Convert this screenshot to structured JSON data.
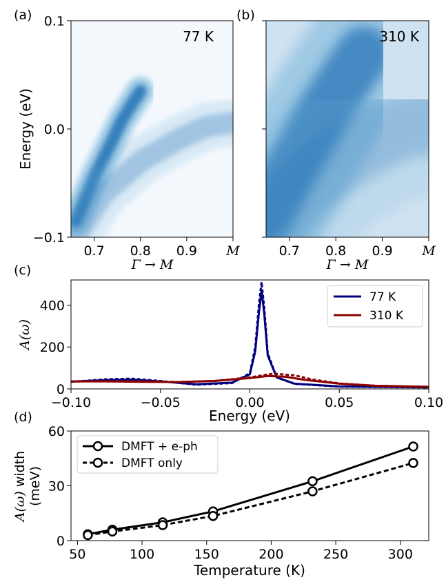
{
  "chart_data": [
    {
      "panel_label": "(a)",
      "type": "heatmap",
      "annotation": "77 K",
      "xlabel": "Γ → M",
      "ylabel": "Energy (eV)",
      "xlim": [
        0.65,
        1.0
      ],
      "ylim": [
        -0.1,
        0.1
      ],
      "x_ticks": [
        "0.7",
        "0.8",
        "0.9",
        "M"
      ],
      "x_tick_values": [
        0.7,
        0.8,
        0.9,
        1.0
      ],
      "y_ticks": [
        "−0.1",
        "0.0",
        "0.1"
      ],
      "y_tick_values": [
        -0.1,
        0.0,
        0.1
      ],
      "colormap": "Blues",
      "bands": [
        {
          "k": [
            0.66,
            0.7,
            0.74,
            0.76,
            0.78,
            0.8
          ],
          "energy": [
            -0.085,
            -0.045,
            -0.01,
            0.008,
            0.022,
            0.035
          ],
          "intensity": 1.0,
          "width": 0.006
        },
        {
          "k": [
            0.66,
            0.72,
            0.8,
            0.88,
            0.94,
            1.0
          ],
          "energy": [
            -0.1,
            -0.06,
            -0.03,
            -0.01,
            0.002,
            0.006
          ],
          "intensity": 0.35,
          "width": 0.01
        }
      ]
    },
    {
      "panel_label": "(b)",
      "type": "heatmap",
      "annotation": "310 K",
      "xlabel": "Γ → M",
      "xlim": [
        0.65,
        1.0
      ],
      "ylim": [
        -0.1,
        0.1
      ],
      "x_ticks": [
        "0.7",
        "0.8",
        "0.9",
        "M"
      ],
      "x_tick_values": [
        0.7,
        0.8,
        0.9,
        1.0
      ],
      "colormap": "Blues",
      "bands": [
        {
          "k": [
            0.65,
            0.7,
            0.74,
            0.78,
            0.82,
            0.86
          ],
          "energy": [
            -0.08,
            -0.04,
            -0.01,
            0.02,
            0.045,
            0.07
          ],
          "intensity": 0.85,
          "width": 0.025
        },
        {
          "k": [
            0.65,
            0.72,
            0.8,
            0.88,
            0.94,
            1.0
          ],
          "energy": [
            -0.1,
            -0.06,
            -0.03,
            -0.01,
            0.002,
            0.006
          ],
          "intensity": 0.3,
          "width": 0.03
        }
      ]
    },
    {
      "panel_label": "(c)",
      "type": "line",
      "xlabel": "Energy (eV)",
      "ylabel": "A(ω)",
      "xlim": [
        -0.1,
        0.1
      ],
      "ylim": [
        0,
        520
      ],
      "x_ticks": [
        "−0.10",
        "−0.05",
        "0.00",
        "0.05",
        "0.10"
      ],
      "x_tick_values": [
        -0.1,
        -0.05,
        0.0,
        0.05,
        0.1
      ],
      "y_ticks": [
        "0",
        "200",
        "400"
      ],
      "y_tick_values": [
        0,
        200,
        400
      ],
      "legend_position": "top-right",
      "series": [
        {
          "name": "77 K",
          "color": "#00007f",
          "style": "solid",
          "x": [
            -0.1,
            -0.08,
            -0.066,
            -0.05,
            -0.03,
            -0.01,
            0.0,
            0.003,
            0.005,
            0.0065,
            0.008,
            0.01,
            0.015,
            0.025,
            0.05,
            0.1
          ],
          "values": [
            35,
            42,
            44,
            36,
            22,
            30,
            70,
            180,
            360,
            470,
            360,
            160,
            55,
            25,
            12,
            8
          ]
        },
        {
          "name": "77 K",
          "color": "#00007f",
          "style": "dashed",
          "x": [
            -0.1,
            -0.08,
            -0.066,
            -0.05,
            -0.03,
            -0.01,
            0.0,
            0.003,
            0.005,
            0.0065,
            0.008,
            0.01,
            0.015,
            0.025,
            0.05,
            0.1
          ],
          "values": [
            34,
            46,
            49,
            38,
            20,
            28,
            75,
            200,
            400,
            510,
            390,
            170,
            55,
            24,
            11,
            7
          ]
        },
        {
          "name": "310 K",
          "color": "#8b0000",
          "style": "solid",
          "x": [
            -0.1,
            -0.08,
            -0.06,
            -0.04,
            -0.02,
            0.0,
            0.01,
            0.02,
            0.03,
            0.05,
            0.07,
            0.1
          ],
          "values": [
            36,
            36,
            34,
            33,
            38,
            52,
            62,
            58,
            44,
            25,
            15,
            10
          ]
        },
        {
          "name": "310 K",
          "color": "#8b0000",
          "style": "dashed",
          "x": [
            -0.1,
            -0.08,
            -0.06,
            -0.04,
            -0.02,
            0.0,
            0.013,
            0.025,
            0.035,
            0.05,
            0.07,
            0.1
          ],
          "values": [
            35,
            38,
            37,
            33,
            38,
            55,
            73,
            65,
            45,
            26,
            15,
            10
          ]
        }
      ],
      "legend": [
        {
          "label": "77 K",
          "color": "#00007f"
        },
        {
          "label": "310 K",
          "color": "#8b0000"
        }
      ]
    },
    {
      "panel_label": "(d)",
      "type": "line",
      "xlabel": "Temperature (K)",
      "ylabel_math": "A(ω)",
      "ylabel_text": " width",
      "ylabel_unit": "(meV)",
      "xlim": [
        45,
        322
      ],
      "ylim": [
        0,
        60
      ],
      "x_ticks": [
        "50",
        "100",
        "150",
        "200",
        "250",
        "300"
      ],
      "x_tick_values": [
        50,
        100,
        150,
        200,
        250,
        300
      ],
      "y_ticks": [
        "0",
        "30",
        "60"
      ],
      "y_tick_values": [
        0,
        30,
        60
      ],
      "legend_position": "top-left",
      "series": [
        {
          "name": "DMFT + e-ph",
          "style": "solid",
          "x": [
            58,
            77,
            116,
            155,
            232,
            310
          ],
          "values": [
            3.5,
            6.0,
            10.0,
            16.0,
            32.5,
            51.5
          ]
        },
        {
          "name": "DMFT only",
          "style": "dashed",
          "x": [
            58,
            77,
            116,
            155,
            232,
            310
          ],
          "values": [
            3.0,
            5.0,
            8.5,
            13.5,
            27.0,
            42.5
          ]
        }
      ]
    }
  ]
}
